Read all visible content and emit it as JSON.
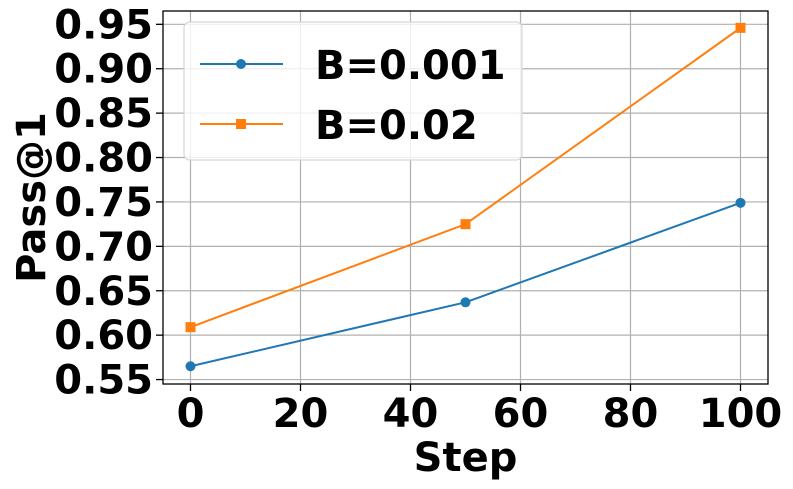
{
  "chart_data": {
    "type": "line",
    "x": [
      0,
      50,
      100
    ],
    "series": [
      {
        "name": "B=0.001",
        "values": [
          0.565,
          0.637,
          0.749
        ],
        "color": "#1f77b4",
        "marker": "circle"
      },
      {
        "name": "B=0.02",
        "values": [
          0.609,
          0.725,
          0.946
        ],
        "color": "#ff7f0e",
        "marker": "square"
      }
    ],
    "xlabel": "Step",
    "ylabel": "Pass@1",
    "xlim": [
      -5,
      105
    ],
    "ylim": [
      0.545,
      0.965
    ],
    "xticks": [
      0,
      20,
      40,
      60,
      80,
      100
    ],
    "xtick_labels": [
      "0",
      "20",
      "40",
      "60",
      "80",
      "100"
    ],
    "yticks": [
      0.55,
      0.6,
      0.65,
      0.7,
      0.75,
      0.8,
      0.85,
      0.9,
      0.95
    ],
    "ytick_labels": [
      "0.55",
      "0.60",
      "0.65",
      "0.70",
      "0.75",
      "0.80",
      "0.85",
      "0.90",
      "0.95"
    ],
    "grid": true,
    "legend_position": "top-left"
  }
}
